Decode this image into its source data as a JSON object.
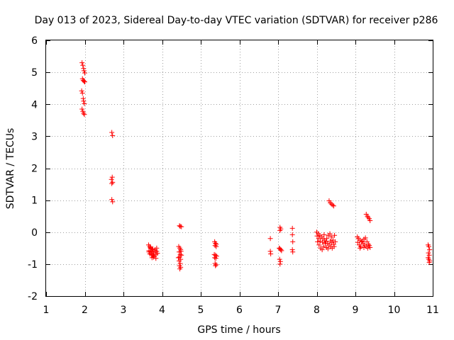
{
  "chart_data": {
    "type": "scatter",
    "title": "Day 013 of 2023, Sidereal Day-to-day VTEC variation (SDTVAR) for receiver p286",
    "xlabel": "GPS time / hours",
    "ylabel": "SDTVAR / TECUs",
    "xlim": [
      1,
      11
    ],
    "ylim": [
      -2,
      6
    ],
    "xticks": [
      "1",
      "2",
      "3",
      "4",
      "5",
      "6",
      "7",
      "8",
      "9",
      "10",
      "11"
    ],
    "yticks": [
      "-2",
      "-1",
      "0",
      "1",
      "2",
      "3",
      "4",
      "5",
      "6"
    ],
    "grid": true,
    "marker": "+",
    "marker_color": "#ff0000",
    "series": [
      {
        "name": "SDTVAR",
        "points": [
          [
            1.93,
            5.3
          ],
          [
            1.95,
            5.22
          ],
          [
            1.97,
            5.12
          ],
          [
            1.98,
            5.05
          ],
          [
            2.0,
            4.98
          ],
          [
            1.94,
            4.8
          ],
          [
            1.96,
            4.75
          ],
          [
            1.98,
            4.72
          ],
          [
            2.0,
            4.7
          ],
          [
            1.92,
            4.42
          ],
          [
            1.94,
            4.35
          ],
          [
            1.96,
            4.18
          ],
          [
            1.97,
            4.1
          ],
          [
            1.99,
            4.02
          ],
          [
            1.93,
            3.85
          ],
          [
            1.95,
            3.78
          ],
          [
            1.97,
            3.72
          ],
          [
            1.99,
            3.68
          ],
          [
            2.7,
            3.12
          ],
          [
            2.72,
            3.02
          ],
          [
            2.71,
            1.72
          ],
          [
            2.69,
            1.65
          ],
          [
            2.72,
            1.56
          ],
          [
            2.7,
            1.52
          ],
          [
            2.7,
            1.02
          ],
          [
            2.72,
            0.95
          ],
          [
            3.65,
            -0.4
          ],
          [
            3.68,
            -0.45
          ],
          [
            3.7,
            -0.5
          ],
          [
            3.72,
            -0.52
          ],
          [
            3.75,
            -0.55
          ],
          [
            3.66,
            -0.58
          ],
          [
            3.7,
            -0.6
          ],
          [
            3.74,
            -0.62
          ],
          [
            3.78,
            -0.65
          ],
          [
            3.82,
            -0.58
          ],
          [
            3.68,
            -0.68
          ],
          [
            3.72,
            -0.7
          ],
          [
            3.76,
            -0.72
          ],
          [
            3.8,
            -0.75
          ],
          [
            3.84,
            -0.7
          ],
          [
            3.7,
            -0.48
          ],
          [
            3.76,
            -0.52
          ],
          [
            3.82,
            -0.55
          ],
          [
            3.86,
            -0.6
          ],
          [
            3.74,
            -0.8
          ],
          [
            3.78,
            -0.78
          ],
          [
            3.84,
            -0.82
          ],
          [
            3.88,
            -0.66
          ],
          [
            3.66,
            -0.62
          ],
          [
            3.86,
            -0.5
          ],
          [
            4.45,
            0.2
          ],
          [
            4.47,
            0.18
          ],
          [
            4.5,
            0.17
          ],
          [
            4.43,
            -0.45
          ],
          [
            4.46,
            -0.5
          ],
          [
            4.48,
            -0.55
          ],
          [
            4.44,
            -0.62
          ],
          [
            4.47,
            -0.7
          ],
          [
            4.45,
            -0.78
          ],
          [
            4.48,
            -0.85
          ],
          [
            4.44,
            -0.9
          ],
          [
            4.47,
            -0.98
          ],
          [
            4.45,
            -1.05
          ],
          [
            4.48,
            -1.1
          ],
          [
            4.46,
            -1.15
          ],
          [
            4.5,
            -0.72
          ],
          [
            4.42,
            -0.8
          ],
          [
            4.49,
            -0.6
          ],
          [
            5.36,
            -0.3
          ],
          [
            5.38,
            -0.35
          ],
          [
            5.4,
            -0.38
          ],
          [
            5.37,
            -0.42
          ],
          [
            5.4,
            -0.45
          ],
          [
            5.35,
            -0.7
          ],
          [
            5.38,
            -0.72
          ],
          [
            5.41,
            -0.75
          ],
          [
            5.36,
            -0.8
          ],
          [
            5.39,
            -0.82
          ],
          [
            5.37,
            -0.98
          ],
          [
            5.4,
            -1.02
          ],
          [
            5.38,
            -1.05
          ],
          [
            6.8,
            -0.2
          ],
          [
            6.8,
            -0.6
          ],
          [
            6.81,
            -0.68
          ],
          [
            7.05,
            0.15
          ],
          [
            7.07,
            0.1
          ],
          [
            7.05,
            0.05
          ],
          [
            7.03,
            -0.5
          ],
          [
            7.05,
            -0.52
          ],
          [
            7.07,
            -0.55
          ],
          [
            7.09,
            -0.58
          ],
          [
            7.04,
            -0.85
          ],
          [
            7.06,
            -0.92
          ],
          [
            7.05,
            -1.0
          ],
          [
            7.37,
            0.12
          ],
          [
            7.37,
            -0.08
          ],
          [
            7.38,
            -0.3
          ],
          [
            7.37,
            -0.55
          ],
          [
            7.38,
            -0.62
          ],
          [
            8.0,
            0.0
          ],
          [
            8.04,
            -0.05
          ],
          [
            8.08,
            -0.1
          ],
          [
            8.12,
            -0.15
          ],
          [
            8.16,
            -0.2
          ],
          [
            8.2,
            -0.25
          ],
          [
            8.24,
            -0.3
          ],
          [
            8.28,
            -0.35
          ],
          [
            8.32,
            -0.4
          ],
          [
            8.36,
            -0.45
          ],
          [
            8.4,
            -0.5
          ],
          [
            8.44,
            -0.38
          ],
          [
            8.02,
            -0.3
          ],
          [
            8.06,
            -0.4
          ],
          [
            8.1,
            -0.5
          ],
          [
            8.14,
            -0.55
          ],
          [
            8.18,
            -0.45
          ],
          [
            8.22,
            -0.35
          ],
          [
            8.26,
            -0.2
          ],
          [
            8.3,
            -0.1
          ],
          [
            8.34,
            -0.05
          ],
          [
            8.38,
            -0.15
          ],
          [
            8.42,
            -0.25
          ],
          [
            8.46,
            -0.1
          ],
          [
            8.05,
            -0.2
          ],
          [
            8.15,
            -0.32
          ],
          [
            8.25,
            -0.48
          ],
          [
            8.35,
            -0.28
          ],
          [
            8.45,
            -0.45
          ],
          [
            8.48,
            -0.3
          ],
          [
            8.01,
            -0.12
          ],
          [
            8.09,
            -0.28
          ],
          [
            8.19,
            -0.08
          ],
          [
            8.29,
            -0.52
          ],
          [
            8.39,
            -0.33
          ],
          [
            8.32,
            0.98
          ],
          [
            8.35,
            0.92
          ],
          [
            8.38,
            0.88
          ],
          [
            8.41,
            0.85
          ],
          [
            8.44,
            0.82
          ],
          [
            9.05,
            -0.15
          ],
          [
            9.08,
            -0.2
          ],
          [
            9.12,
            -0.25
          ],
          [
            9.16,
            -0.3
          ],
          [
            9.2,
            -0.35
          ],
          [
            9.24,
            -0.4
          ],
          [
            9.28,
            -0.45
          ],
          [
            9.32,
            -0.5
          ],
          [
            9.36,
            -0.42
          ],
          [
            9.06,
            -0.32
          ],
          [
            9.1,
            -0.4
          ],
          [
            9.14,
            -0.45
          ],
          [
            9.18,
            -0.28
          ],
          [
            9.22,
            -0.22
          ],
          [
            9.26,
            -0.18
          ],
          [
            9.3,
            -0.3
          ],
          [
            9.34,
            -0.38
          ],
          [
            9.38,
            -0.48
          ],
          [
            9.12,
            -0.5
          ],
          [
            9.22,
            -0.48
          ],
          [
            9.28,
            0.56
          ],
          [
            9.31,
            0.5
          ],
          [
            9.33,
            0.46
          ],
          [
            9.36,
            0.42
          ],
          [
            9.38,
            0.36
          ],
          [
            10.88,
            -0.4
          ],
          [
            10.9,
            -0.45
          ],
          [
            10.92,
            -0.55
          ],
          [
            10.89,
            -0.65
          ],
          [
            10.91,
            -0.72
          ],
          [
            10.88,
            -0.8
          ],
          [
            10.9,
            -0.85
          ],
          [
            10.92,
            -0.9
          ],
          [
            10.91,
            -0.95
          ]
        ]
      }
    ]
  }
}
